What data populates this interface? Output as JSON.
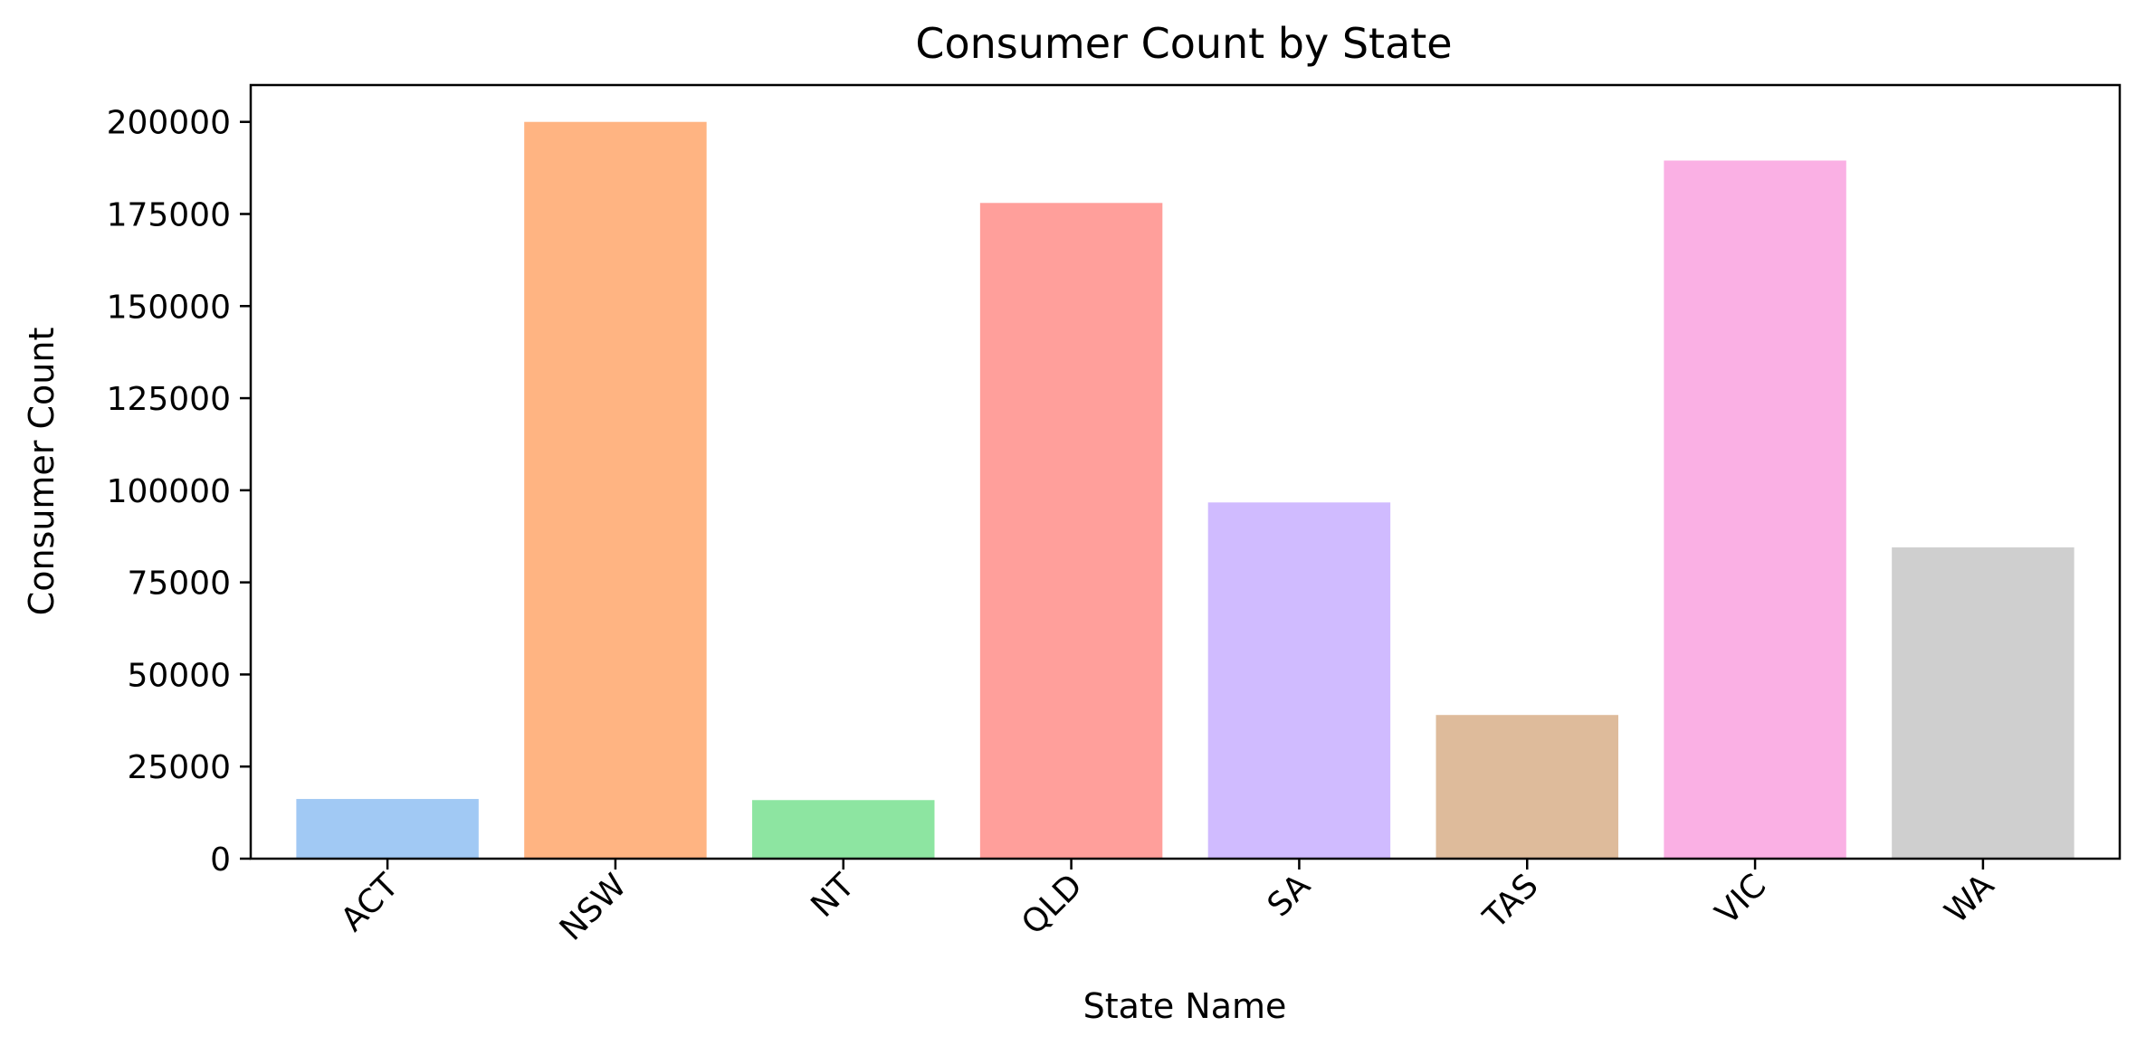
{
  "chart_data": {
    "type": "bar",
    "title": "Consumer Count by State",
    "xlabel": "State Name",
    "ylabel": "Consumer Count",
    "categories": [
      "ACT",
      "NSW",
      "NT",
      "QLD",
      "SA",
      "TAS",
      "VIC",
      "WA"
    ],
    "values": [
      16200,
      200000,
      15900,
      178000,
      96700,
      39000,
      189500,
      84500
    ],
    "colors": [
      "#a1c9f4",
      "#ffb482",
      "#8de5a1",
      "#ff9f9b",
      "#d0bbff",
      "#debb9b",
      "#fab0e4",
      "#cfcfcf"
    ],
    "ylim": [
      0,
      210000
    ],
    "yticks": [
      0,
      25000,
      50000,
      75000,
      100000,
      125000,
      150000,
      175000,
      200000
    ],
    "ytick_labels": [
      "0",
      "25000",
      "50000",
      "75000",
      "100000",
      "125000",
      "150000",
      "175000",
      "200000"
    ],
    "xtick_rotation": -45,
    "grid": false,
    "legend": "none"
  }
}
